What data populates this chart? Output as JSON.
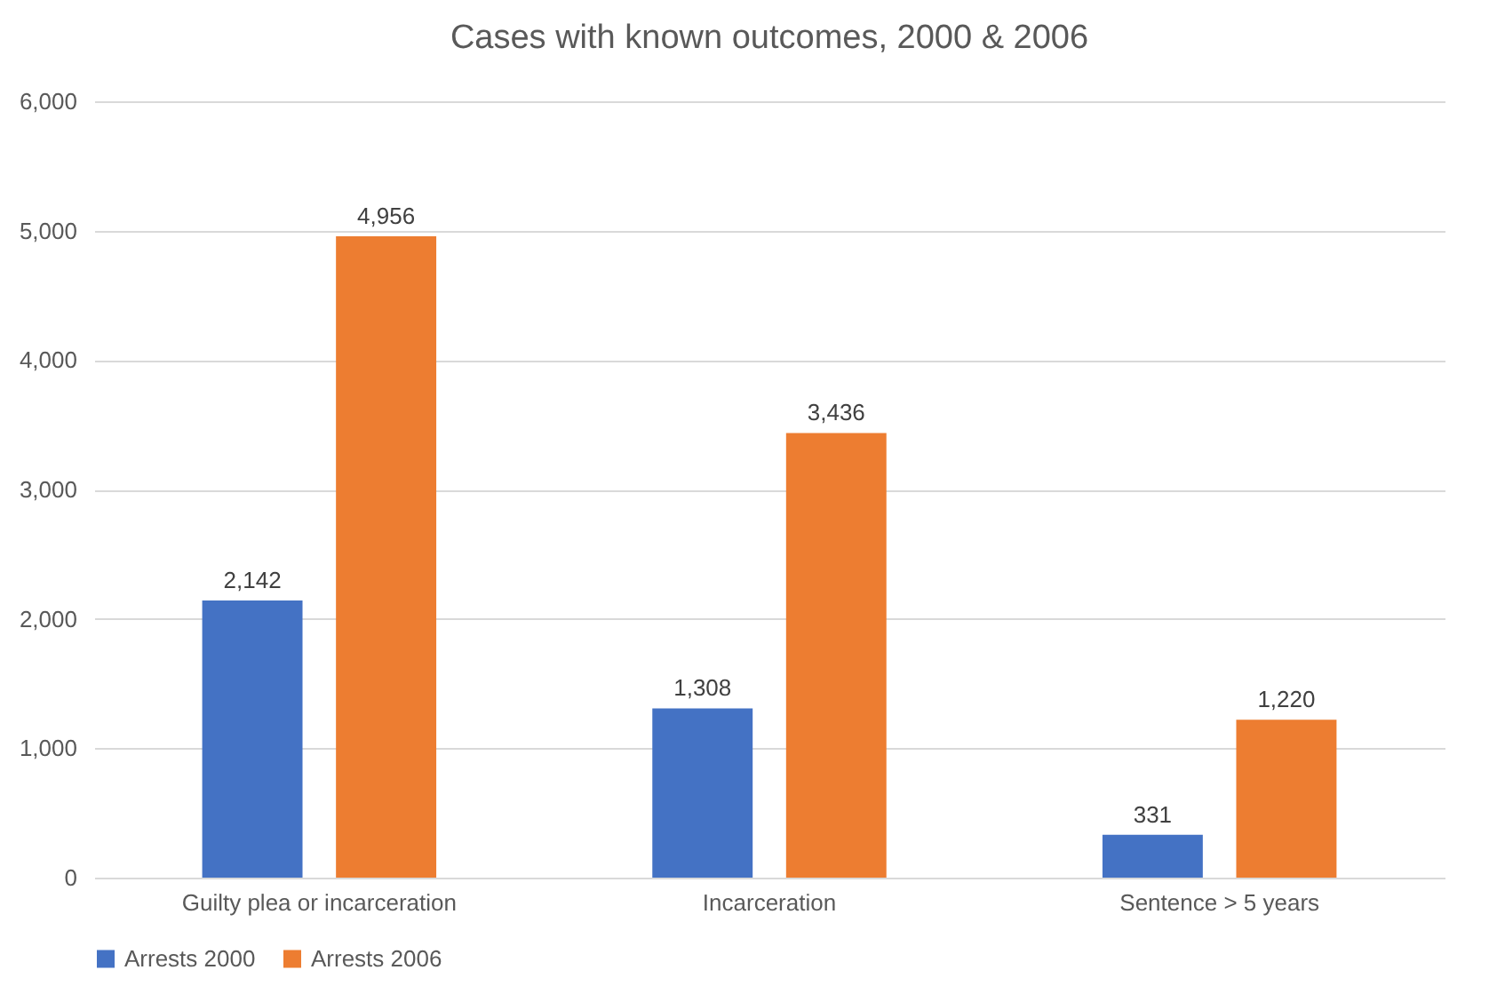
{
  "chart_data": {
    "type": "bar",
    "title": "Cases with known outcomes, 2000 & 2006",
    "categories": [
      "Guilty plea or incarceration",
      "Incarceration",
      "Sentence > 5 years"
    ],
    "series": [
      {
        "name": "Arrests 2000",
        "color": "#4472c4",
        "values": [
          2142,
          1308,
          331
        ],
        "value_labels": [
          "2,142",
          "1,308",
          "331"
        ]
      },
      {
        "name": "Arrests 2006",
        "color": "#ed7d31",
        "values": [
          4956,
          3436,
          1220
        ],
        "value_labels": [
          "4,956",
          "3,436",
          "1,220"
        ]
      }
    ],
    "ylim": [
      0,
      6000
    ],
    "yticks": [
      0,
      {
        "value": 1000,
        "label": "1,000"
      },
      {
        "value": 2000,
        "label": "2,000"
      },
      {
        "value": 3000,
        "label": "3,000"
      },
      {
        "value": 4000,
        "label": "4,000"
      },
      {
        "value": 5000,
        "label": "5,000"
      },
      {
        "value": 6000,
        "label": "6,000"
      }
    ],
    "grid": "y",
    "legend": "bottom"
  }
}
